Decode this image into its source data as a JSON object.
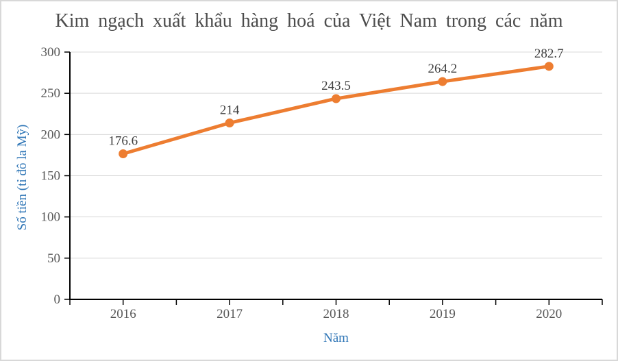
{
  "chart": {
    "title": "Kim ngạch xuất khẩu hàng hoá của Việt Nam trong các năm",
    "x_axis_title": "Năm",
    "y_axis_title": "Số tiền (tỉ đô la Mỹ)"
  },
  "colors": {
    "line": "#ED7D31",
    "marker": "#ED7D31",
    "axis_title_blue": "#2E75B6",
    "gridline_gray": "#D9D9D9",
    "axis_black": "#000000",
    "tick_text": "#595959",
    "data_label_text": "#3F3F3F",
    "title_text": "#4C4C4C"
  },
  "chart_data": {
    "type": "line",
    "title": "Kim ngạch xuất khẩu hàng hoá của Việt Nam trong các năm",
    "xlabel": "Năm",
    "ylabel": "Số tiền (tỉ đô la Mỹ)",
    "categories": [
      "2016",
      "2017",
      "2018",
      "2019",
      "2020"
    ],
    "values": [
      176.6,
      214,
      243.5,
      264.2,
      282.7
    ],
    "data_labels": [
      "176.6",
      "214",
      "243.5",
      "264.2",
      "282.7"
    ],
    "ylim": [
      0,
      300
    ],
    "y_ticks": [
      0,
      50,
      100,
      150,
      200,
      250,
      300
    ],
    "grid": true,
    "legend": false,
    "marker": "circle",
    "data_label_position": "above"
  }
}
